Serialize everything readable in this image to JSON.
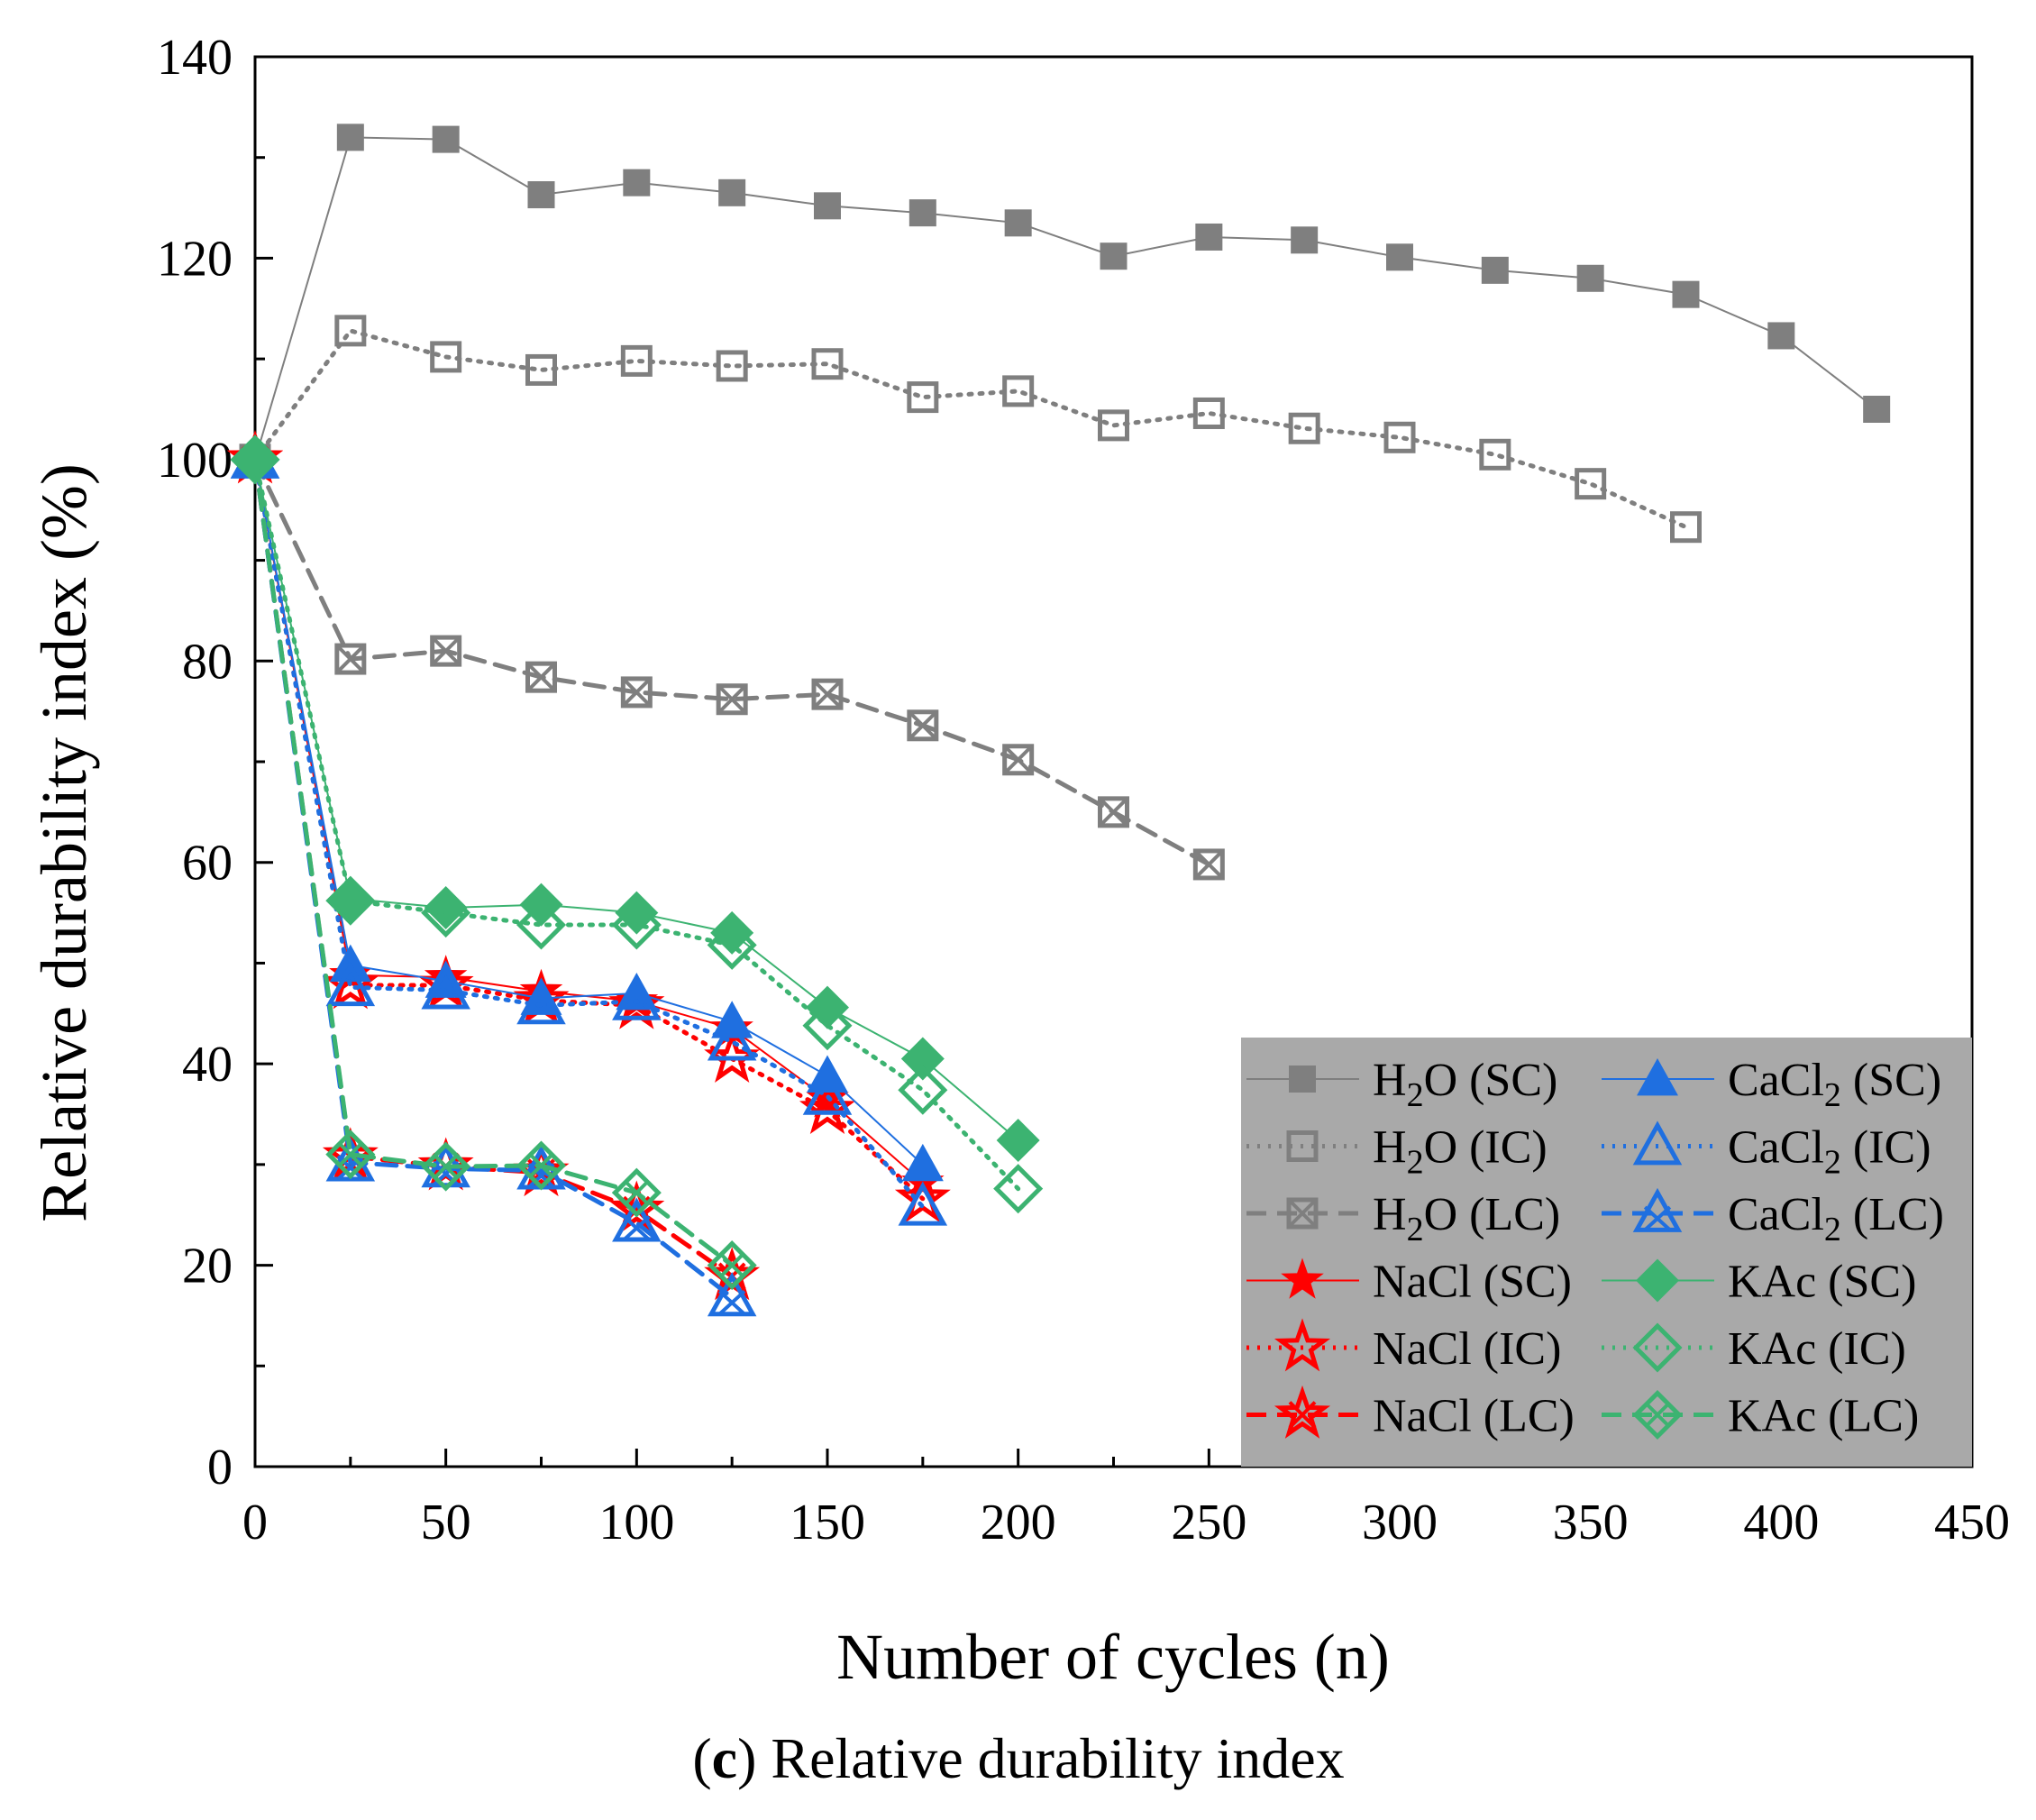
{
  "chart_data": {
    "type": "line",
    "title": "",
    "caption": {
      "letter": "c",
      "text": "Relative durability index",
      "open": "(",
      "close": ")"
    },
    "xlabel": "Number of cycles (n)",
    "ylabel": "Relative durability index (%)",
    "xlim": [
      0,
      450
    ],
    "ylim": [
      0,
      140
    ],
    "xticks": [
      "0",
      "50",
      "100",
      "150",
      "200",
      "250",
      "300",
      "350",
      "400",
      "450"
    ],
    "yticks": [
      "0",
      "20",
      "40",
      "60",
      "80",
      "100",
      "120",
      "140"
    ],
    "legend_position": "bottom-right",
    "legend_background": "#a9a9a9",
    "colors": {
      "h2o": "#7f7f7f",
      "nacl": "#ff0000",
      "cacl2": "#1f6fe0",
      "kac": "#3cb371"
    },
    "series": [
      {
        "name": "H2O (SC)",
        "base": "H",
        "sub": "2",
        "rest": "O (SC)",
        "color": "#7f7f7f",
        "marker": "square-filled",
        "line": "solid",
        "x": [
          0,
          25,
          50,
          75,
          100,
          125,
          150,
          175,
          200,
          225,
          250,
          275,
          300,
          325,
          350,
          375,
          400,
          425
        ],
        "y": [
          100,
          132,
          131.8,
          126.3,
          127.5,
          126.5,
          125.2,
          124.5,
          123.5,
          120.2,
          122.1,
          121.8,
          120.1,
          118.8,
          118,
          116.4,
          112.3,
          105
        ]
      },
      {
        "name": "H2O (IC)",
        "base": "H",
        "sub": "2",
        "rest": "O (IC)",
        "color": "#7f7f7f",
        "marker": "square-open",
        "line": "dotted",
        "x": [
          0,
          25,
          50,
          75,
          100,
          125,
          150,
          175,
          200,
          225,
          250,
          275,
          300,
          325,
          350,
          375
        ],
        "y": [
          100,
          112.8,
          110.2,
          108.9,
          109.8,
          109.3,
          109.5,
          106.2,
          106.8,
          103.4,
          104.6,
          103.1,
          102.2,
          100.5,
          97.6,
          93.3
        ]
      },
      {
        "name": "H2O (LC)",
        "base": "H",
        "sub": "2",
        "rest": "O (LC)",
        "color": "#7f7f7f",
        "marker": "square-x",
        "line": "dashed",
        "x": [
          0,
          25,
          50,
          75,
          100,
          125,
          150,
          175,
          200,
          225,
          250
        ],
        "y": [
          100,
          80.2,
          81,
          78.4,
          76.9,
          76.2,
          76.7,
          73.6,
          70.2,
          65,
          59.8
        ]
      },
      {
        "name": "NaCl (SC)",
        "base": "NaCl (SC)",
        "sub": "",
        "rest": "",
        "color": "#ff0000",
        "marker": "star-filled",
        "line": "solid",
        "x": [
          0,
          25,
          50,
          75,
          100,
          125,
          150,
          175
        ],
        "y": [
          100,
          48.8,
          48.6,
          47.2,
          46.2,
          43.5,
          36.5,
          28.2
        ]
      },
      {
        "name": "NaCl (IC)",
        "base": "NaCl (IC)",
        "sub": "",
        "rest": "",
        "color": "#ff0000",
        "marker": "star-open",
        "line": "dotted",
        "x": [
          0,
          25,
          50,
          75,
          100,
          125,
          150,
          175
        ],
        "y": [
          100,
          47.8,
          47.8,
          46.3,
          45.8,
          40.5,
          35.4,
          26.6
        ]
      },
      {
        "name": "NaCl (LC)",
        "base": "NaCl (LC)",
        "sub": "",
        "rest": "",
        "color": "#ff0000",
        "marker": "star-x",
        "line": "dashed",
        "x": [
          0,
          25,
          50,
          75,
          100,
          125
        ],
        "y": [
          100,
          30.8,
          29.8,
          29.2,
          25.5,
          18.9
        ]
      },
      {
        "name": "CaCl2 (SC)",
        "base": "CaCl",
        "sub": "2",
        "rest": " (SC)",
        "color": "#1f6fe0",
        "marker": "triangle-filled",
        "line": "solid",
        "x": [
          0,
          25,
          50,
          75,
          100,
          125,
          150,
          175
        ],
        "y": [
          100,
          49.8,
          48.2,
          46.5,
          47,
          44.2,
          38.8,
          30
        ]
      },
      {
        "name": "CaCl2 (IC)",
        "base": "CaCl",
        "sub": "2",
        "rest": " (IC)",
        "color": "#1f6fe0",
        "marker": "triangle-open",
        "line": "dotted",
        "x": [
          0,
          25,
          50,
          75,
          100,
          125,
          150,
          175
        ],
        "y": [
          100,
          47.6,
          47.3,
          45.8,
          46.2,
          42.2,
          36.8,
          25.8
        ]
      },
      {
        "name": "CaCl2 (LC)",
        "base": "CaCl",
        "sub": "2",
        "rest": " (LC)",
        "color": "#1f6fe0",
        "marker": "triangle-x",
        "line": "dashed",
        "x": [
          0,
          25,
          50,
          75,
          100,
          125
        ],
        "y": [
          100,
          30.2,
          29.6,
          29.4,
          24.2,
          16.8
        ]
      },
      {
        "name": "KAc (SC)",
        "base": "KAc (SC)",
        "sub": "",
        "rest": "",
        "color": "#3cb371",
        "marker": "diamond-filled",
        "line": "solid",
        "x": [
          0,
          25,
          50,
          75,
          100,
          125,
          150,
          175,
          200
        ],
        "y": [
          100,
          56.4,
          55.5,
          55.8,
          55,
          53,
          45.6,
          40.5,
          32.4
        ]
      },
      {
        "name": "KAc (IC)",
        "base": "KAc (IC)",
        "sub": "",
        "rest": "",
        "color": "#3cb371",
        "marker": "diamond-open",
        "line": "dotted",
        "x": [
          0,
          25,
          50,
          75,
          100,
          125,
          150,
          175,
          200
        ],
        "y": [
          100,
          56.2,
          55,
          53.8,
          53.8,
          51.8,
          43.8,
          37.4,
          27.6
        ]
      },
      {
        "name": "KAc (LC)",
        "base": "KAc (LC)",
        "sub": "",
        "rest": "",
        "color": "#3cb371",
        "marker": "diamond-x",
        "line": "dashed",
        "x": [
          0,
          25,
          50,
          75,
          100,
          125
        ],
        "y": [
          100,
          31,
          29.8,
          29.9,
          27.2,
          20
        ]
      }
    ]
  }
}
